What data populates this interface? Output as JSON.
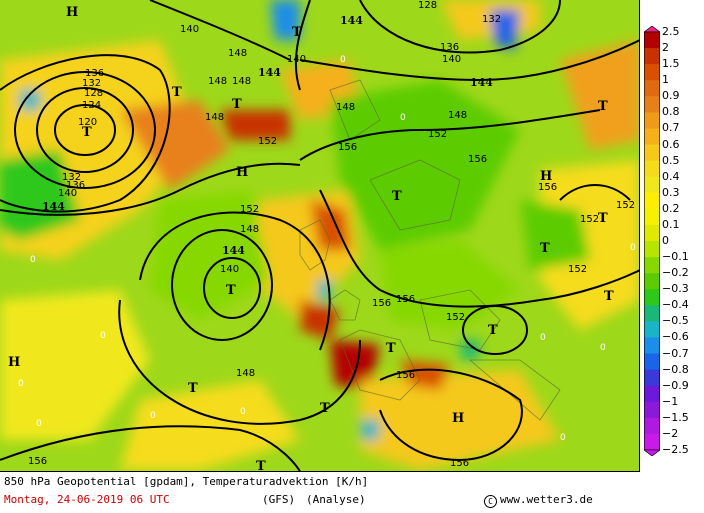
{
  "map": {
    "contour_labels": [
      "120",
      "124",
      "128",
      "132",
      "136",
      "140",
      "144",
      "148",
      "152",
      "156"
    ],
    "pressure_centers": [
      {
        "type": "T",
        "label": "T"
      },
      {
        "type": "H",
        "label": "H"
      }
    ],
    "sample_contour_text": {
      "c120": "120",
      "c124": "124",
      "c128": "128",
      "c132": "132",
      "c136": "136",
      "c140": "140",
      "c144": "144",
      "c148": "148",
      "c152": "152",
      "c156": "156"
    },
    "zero_label": "0"
  },
  "legend": {
    "title": "",
    "values": [
      "2.5",
      "2",
      "1.5",
      "1",
      "0.9",
      "0.8",
      "0.7",
      "0.6",
      "0.5",
      "0.4",
      "0.3",
      "0.2",
      "0.1",
      "0",
      "−0.1",
      "−0.2",
      "−0.3",
      "−0.4",
      "−0.5",
      "−0.6",
      "−0.7",
      "−0.8",
      "−0.9",
      "−1",
      "−1.5",
      "−2",
      "−2.5"
    ],
    "colors": [
      "#e8267f",
      "#b30000",
      "#c83200",
      "#d85000",
      "#e06a10",
      "#e8801a",
      "#f09a1a",
      "#f5b01a",
      "#f5c81a",
      "#f5dc1a",
      "#f0e81a",
      "#ffee00",
      "#f6f100",
      "#e0ea00",
      "#b6e600",
      "#86d800",
      "#5ccc00",
      "#2ec81a",
      "#1ab878",
      "#1ab4c8",
      "#1a8ee8",
      "#1a64e8",
      "#3a3ad8",
      "#6a1ad8",
      "#8a1ad8",
      "#b01ae0",
      "#c81ae8"
    ]
  },
  "footer": {
    "line1": "850 hPa Geopotential [gpdam], Temperaturadvektion [K/h]",
    "date": "Montag, 24-06-2019  06 UTC",
    "model": "(GFS)",
    "run": "(Analyse)",
    "copyright": "www.wetter3.de",
    "copyright_symbol": "C"
  }
}
